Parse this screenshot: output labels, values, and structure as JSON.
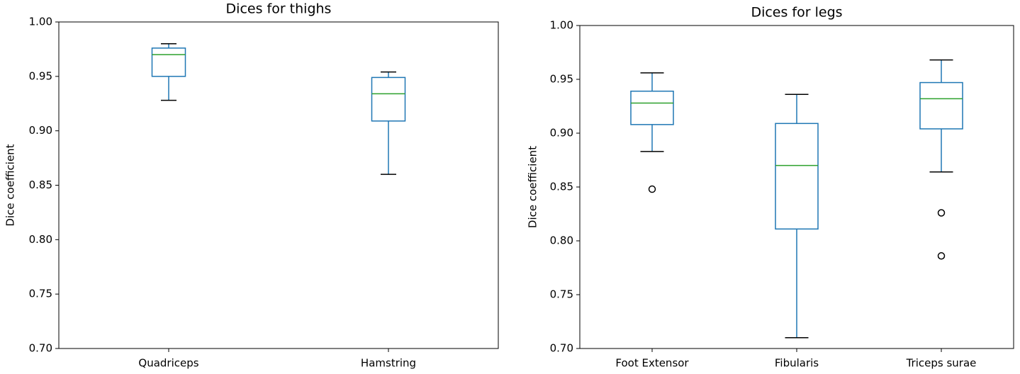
{
  "chart_data": [
    {
      "type": "box",
      "title": "Dices for thighs",
      "ylabel": "Dice coefficient",
      "categories": [
        "Quadriceps",
        "Hamstring"
      ],
      "boxes": [
        {
          "whislo": 0.928,
          "q1": 0.95,
          "med": 0.97,
          "q3": 0.976,
          "whishi": 0.98,
          "fliers": []
        },
        {
          "whislo": 0.86,
          "q1": 0.909,
          "med": 0.934,
          "q3": 0.949,
          "whishi": 0.954,
          "fliers": []
        }
      ],
      "box_color": "#1f77b4",
      "median_color": "#2ca02c",
      "whisker_color": "#1f77b4",
      "cap_color": "#000000",
      "ylim": [
        0.7,
        1.0
      ],
      "yticks": [
        {
          "value": 0.7,
          "label": "0.70"
        },
        0.75,
        {
          "value": 0.8,
          "label": "0.80"
        },
        0.85,
        {
          "value": 0.9,
          "label": "0.90"
        },
        0.95,
        {
          "value": 1.0,
          "label": "1.00"
        }
      ],
      "grid": false
    },
    {
      "type": "box",
      "title": "Dices for legs",
      "ylabel": "Dice coefficient",
      "categories": [
        "Foot Extensor",
        "Fibularis",
        "Triceps surae"
      ],
      "boxes": [
        {
          "whislo": 0.883,
          "q1": 0.908,
          "med": 0.928,
          "q3": 0.939,
          "whishi": 0.956,
          "fliers": [
            0.848
          ]
        },
        {
          "whislo": 0.71,
          "q1": 0.811,
          "med": 0.87,
          "q3": 0.909,
          "whishi": 0.936,
          "fliers": []
        },
        {
          "whislo": 0.864,
          "q1": 0.904,
          "med": 0.932,
          "q3": 0.947,
          "whishi": 0.968,
          "fliers": [
            0.826,
            0.786
          ]
        }
      ],
      "box_color": "#1f77b4",
      "median_color": "#2ca02c",
      "whisker_color": "#1f77b4",
      "cap_color": "#000000",
      "ylim": [
        0.7,
        1.0
      ],
      "yticks": [
        {
          "value": 0.7,
          "label": "0.70"
        },
        0.75,
        {
          "value": 0.8,
          "label": "0.80"
        },
        0.85,
        {
          "value": 0.9,
          "label": "0.90"
        },
        0.95,
        {
          "value": 1.0,
          "label": "1.00"
        }
      ],
      "grid": false
    }
  ]
}
